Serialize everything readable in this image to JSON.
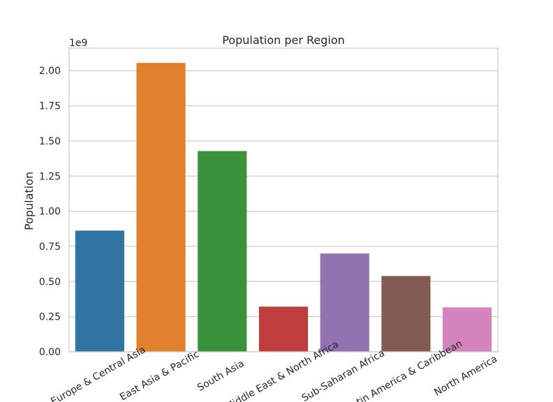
{
  "chart_data": {
    "type": "bar",
    "title": "Population per Region",
    "xlabel": "",
    "ylabel": "Population",
    "offset_label": "1e9",
    "y_scale_factor": 1000000000,
    "categories": [
      "Europe & Central Asia",
      "East Asia & Pacific",
      "South Asia",
      "Middle East & North Africa",
      "Sub-Saharan Africa",
      "Latin America & Caribbean",
      "North America"
    ],
    "values": [
      862000000,
      2055000000,
      1428000000,
      321000000,
      699000000,
      539000000,
      316000000
    ],
    "colors": [
      "#3274a1",
      "#e1812c",
      "#3a923a",
      "#c03d3e",
      "#9372b2",
      "#845b53",
      "#d684bd"
    ],
    "ylim": [
      0,
      2160000000
    ],
    "yticks": [
      {
        "value": 0,
        "label": "0.00"
      },
      {
        "value": 250000000,
        "label": "0.25"
      },
      {
        "value": 500000000,
        "label": "0.50"
      },
      {
        "value": 750000000,
        "label": "0.75"
      },
      {
        "value": 1000000000,
        "label": "1.00"
      },
      {
        "value": 1250000000,
        "label": "1.25"
      },
      {
        "value": 1500000000,
        "label": "1.50"
      },
      {
        "value": 1750000000,
        "label": "1.75"
      },
      {
        "value": 2000000000,
        "label": "2.00"
      }
    ],
    "grid": true,
    "x_label_rotation_deg": 30
  }
}
